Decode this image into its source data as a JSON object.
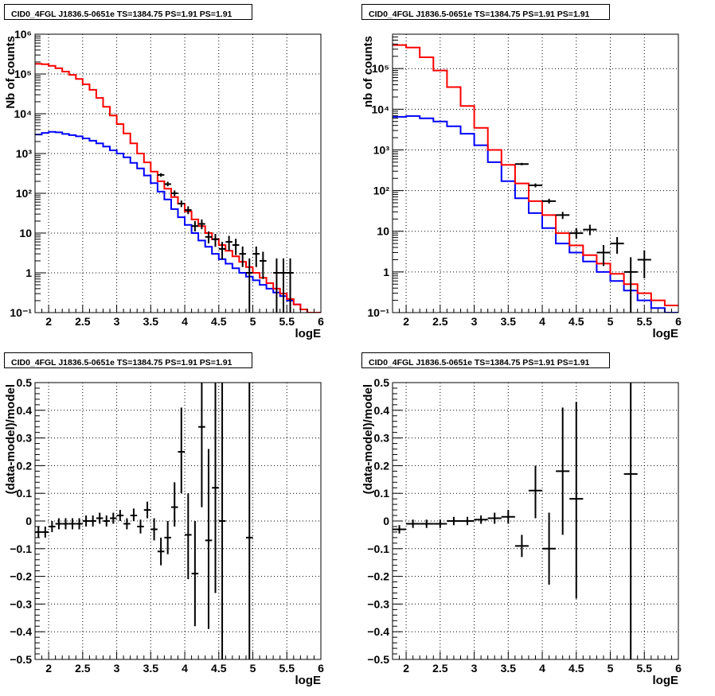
{
  "chart_data": [
    {
      "type": "line",
      "title": "CID0_4FGL J1836.5-0651e TS=1384.75 PS=1.91 PS=1.91",
      "xlabel": "logE",
      "ylabel": "Nb of counts",
      "y_scale": "log",
      "xlim": [
        1.8,
        6.0
      ],
      "ylim": [
        0.1,
        1000000
      ],
      "grid": true,
      "x_ticks": [
        "2",
        "2.5",
        "3",
        "3.5",
        "4",
        "4.5",
        "5",
        "5.5",
        "6"
      ],
      "y_ticks": [
        "10⁻¹",
        "1",
        "10",
        "10²",
        "10³",
        "10⁴",
        "10⁵",
        "10⁶"
      ],
      "x_edges": [
        1.8,
        1.9,
        2.0,
        2.1,
        2.2,
        2.3,
        2.4,
        2.5,
        2.6,
        2.7,
        2.8,
        2.9,
        3.0,
        3.1,
        3.2,
        3.3,
        3.4,
        3.5,
        3.6,
        3.7,
        3.8,
        3.9,
        4.0,
        4.1,
        4.2,
        4.3,
        4.4,
        4.5,
        4.6,
        4.7,
        4.8,
        4.9,
        5.0,
        5.1,
        5.2,
        5.3,
        5.4,
        5.5,
        5.6,
        5.7,
        5.8,
        5.9,
        6.0
      ],
      "series": [
        {
          "kind": "hist",
          "color": "#0000ff",
          "values": [
            3000,
            3300,
            3500,
            3400,
            3100,
            2900,
            2700,
            2400,
            2100,
            1800,
            1500,
            1200,
            1000,
            800,
            580,
            420,
            280,
            180,
            110,
            70,
            40,
            25,
            16,
            10,
            6.5,
            4.5,
            3.0,
            2.2,
            1.7,
            1.3,
            1.0,
            0.8,
            0.65,
            0.5,
            0.4,
            0.32,
            0.26,
            0.2,
            0.16,
            0.12,
            0.1,
            0.1
          ]
        },
        {
          "kind": "hist",
          "color": "#ff0000",
          "values": [
            180000,
            175000,
            160000,
            140000,
            115000,
            95000,
            75000,
            55000,
            40000,
            25000,
            15000,
            9000,
            5500,
            3200,
            1800,
            1000,
            600,
            350,
            200,
            130,
            80,
            55,
            35,
            22,
            15,
            10,
            7,
            5,
            3.6,
            2.6,
            1.9,
            1.4,
            1.0,
            0.75,
            0.55,
            0.4,
            0.3,
            0.22,
            0.16,
            0.12,
            0.1,
            0.1
          ]
        },
        {
          "kind": "points",
          "color": "#000000",
          "points": [
            {
              "x": 3.65,
              "y": 290,
              "ylo": 260,
              "yhi": 320
            },
            {
              "x": 3.75,
              "y": 170,
              "ylo": 150,
              "yhi": 195
            },
            {
              "x": 3.85,
              "y": 100,
              "ylo": 85,
              "yhi": 118
            },
            {
              "x": 3.95,
              "y": 55,
              "ylo": 45,
              "yhi": 66
            },
            {
              "x": 4.05,
              "y": 38,
              "ylo": 30,
              "yhi": 47
            },
            {
              "x": 4.15,
              "y": 15,
              "ylo": 11,
              "yhi": 20
            },
            {
              "x": 4.25,
              "y": 17,
              "ylo": 12.5,
              "yhi": 22
            },
            {
              "x": 4.35,
              "y": 8,
              "ylo": 5.5,
              "yhi": 11
            },
            {
              "x": 4.45,
              "y": 7,
              "ylo": 4.5,
              "yhi": 9.5
            },
            {
              "x": 4.55,
              "y": 4,
              "ylo": 2.2,
              "yhi": 6
            },
            {
              "x": 4.65,
              "y": 6,
              "ylo": 3.6,
              "yhi": 8.5
            },
            {
              "x": 4.75,
              "y": 5,
              "ylo": 2.8,
              "yhi": 7.2
            },
            {
              "x": 4.85,
              "y": 3,
              "ylo": 1.4,
              "yhi": 4.6
            },
            {
              "x": 4.95,
              "y": 1,
              "ylo": 0.1,
              "yhi": 2.3
            },
            {
              "x": 5.05,
              "y": 3,
              "ylo": 1.4,
              "yhi": 4.6
            },
            {
              "x": 5.15,
              "y": 2,
              "ylo": 0.7,
              "yhi": 3.4
            },
            {
              "x": 5.35,
              "y": 1,
              "ylo": 0.1,
              "yhi": 2.3
            },
            {
              "x": 5.45,
              "y": 1,
              "ylo": 0.1,
              "yhi": 2.3
            },
            {
              "x": 5.55,
              "y": 1,
              "ylo": 0.1,
              "yhi": 2.3
            }
          ]
        }
      ]
    },
    {
      "type": "line",
      "title": "CID0_4FGL J1836.5-0651e TS=1384.75 PS=1.91 PS=1.91",
      "xlabel": "logE",
      "ylabel": "nb of counts",
      "y_scale": "log",
      "xlim": [
        1.8,
        6.0
      ],
      "ylim": [
        0.1,
        700000
      ],
      "grid": true,
      "x_ticks": [
        "2",
        "2.5",
        "3",
        "3.5",
        "4",
        "4.5",
        "5",
        "5.5",
        "6"
      ],
      "y_ticks": [
        "10⁻¹",
        "1",
        "10",
        "10²",
        "10³",
        "10⁴",
        "10⁵"
      ],
      "x_edges": [
        1.8,
        2.0,
        2.2,
        2.4,
        2.6,
        2.8,
        3.0,
        3.2,
        3.4,
        3.6,
        3.8,
        4.0,
        4.2,
        4.4,
        4.6,
        4.8,
        5.0,
        5.2,
        5.4,
        5.6,
        5.8,
        6.0
      ],
      "series": [
        {
          "kind": "hist",
          "color": "#0000ff",
          "values": [
            6500,
            6800,
            6000,
            5000,
            3800,
            2500,
            1300,
            500,
            170,
            65,
            28,
            12,
            5,
            3,
            1.8,
            1.0,
            0.6,
            0.35,
            0.2,
            0.13,
            0.1
          ]
        },
        {
          "kind": "hist",
          "color": "#ff0000",
          "values": [
            380000,
            330000,
            190000,
            90000,
            35000,
            12000,
            3500,
            1000,
            430,
            150,
            55,
            25,
            9,
            4.5,
            2.6,
            1.6,
            0.9,
            0.5,
            0.3,
            0.2,
            0.15
          ]
        },
        {
          "kind": "points",
          "color": "#000000",
          "points": [
            {
              "x": 3.7,
              "y": 450,
              "ylo": 420,
              "yhi": 480
            },
            {
              "x": 3.9,
              "y": 135,
              "ylo": 120,
              "yhi": 150
            },
            {
              "x": 4.1,
              "y": 55,
              "ylo": 48,
              "yhi": 63
            },
            {
              "x": 4.3,
              "y": 25,
              "ylo": 20,
              "yhi": 30
            },
            {
              "x": 4.5,
              "y": 9,
              "ylo": 6.5,
              "yhi": 12
            },
            {
              "x": 4.7,
              "y": 11,
              "ylo": 8,
              "yhi": 14.5
            },
            {
              "x": 4.9,
              "y": 3,
              "ylo": 1.4,
              "yhi": 4.6
            },
            {
              "x": 5.1,
              "y": 5,
              "ylo": 2.8,
              "yhi": 7.2
            },
            {
              "x": 5.3,
              "y": 1,
              "ylo": 0.1,
              "yhi": 2.3
            },
            {
              "x": 5.5,
              "y": 2,
              "ylo": 0.7,
              "yhi": 3.4
            }
          ]
        }
      ]
    },
    {
      "type": "scatter",
      "title": "CID0_4FGL J1836.5-0651e TS=1384.75 PS=1.91 PS=1.91",
      "xlabel": "logE",
      "ylabel": "(data-model)/model",
      "y_scale": "linear",
      "xlim": [
        1.8,
        6.0
      ],
      "ylim": [
        -0.5,
        0.5
      ],
      "grid": true,
      "x_ticks": [
        "2",
        "2.5",
        "3",
        "3.5",
        "4",
        "4.5",
        "5",
        "5.5",
        "6"
      ],
      "y_ticks": [
        "−0.5",
        "−0.4",
        "−0.3",
        "−0.2",
        "−0.1",
        "0",
        "0.1",
        "0.2",
        "0.3",
        "0.4",
        "0.5"
      ],
      "bin_half_width": 0.05,
      "series": [
        {
          "kind": "points",
          "color": "#000000",
          "points": [
            {
              "x": 1.85,
              "y": -0.04,
              "ylo": -0.06,
              "yhi": -0.02
            },
            {
              "x": 1.95,
              "y": -0.04,
              "ylo": -0.06,
              "yhi": -0.02
            },
            {
              "x": 2.05,
              "y": -0.02,
              "ylo": -0.04,
              "yhi": 0.0
            },
            {
              "x": 2.15,
              "y": -0.01,
              "ylo": -0.03,
              "yhi": 0.01
            },
            {
              "x": 2.25,
              "y": -0.01,
              "ylo": -0.03,
              "yhi": 0.01
            },
            {
              "x": 2.35,
              "y": -0.01,
              "ylo": -0.03,
              "yhi": 0.01
            },
            {
              "x": 2.45,
              "y": -0.01,
              "ylo": -0.03,
              "yhi": 0.01
            },
            {
              "x": 2.55,
              "y": 0.0,
              "ylo": -0.02,
              "yhi": 0.02
            },
            {
              "x": 2.65,
              "y": 0.0,
              "ylo": -0.02,
              "yhi": 0.02
            },
            {
              "x": 2.75,
              "y": 0.01,
              "ylo": -0.01,
              "yhi": 0.03
            },
            {
              "x": 2.85,
              "y": 0.0,
              "ylo": -0.02,
              "yhi": 0.02
            },
            {
              "x": 2.95,
              "y": 0.01,
              "ylo": -0.01,
              "yhi": 0.03
            },
            {
              "x": 3.05,
              "y": 0.02,
              "ylo": 0.0,
              "yhi": 0.04
            },
            {
              "x": 3.15,
              "y": -0.01,
              "ylo": -0.03,
              "yhi": 0.01
            },
            {
              "x": 3.25,
              "y": 0.02,
              "ylo": 0.0,
              "yhi": 0.045
            },
            {
              "x": 3.35,
              "y": -0.02,
              "ylo": -0.045,
              "yhi": 0.005
            },
            {
              "x": 3.45,
              "y": 0.04,
              "ylo": 0.01,
              "yhi": 0.07
            },
            {
              "x": 3.55,
              "y": -0.03,
              "ylo": -0.07,
              "yhi": 0.01
            },
            {
              "x": 3.65,
              "y": -0.11,
              "ylo": -0.16,
              "yhi": -0.06
            },
            {
              "x": 3.75,
              "y": -0.06,
              "ylo": -0.12,
              "yhi": 0.0
            },
            {
              "x": 3.85,
              "y": 0.05,
              "ylo": -0.02,
              "yhi": 0.14
            },
            {
              "x": 3.95,
              "y": 0.25,
              "ylo": 0.1,
              "yhi": 0.41
            },
            {
              "x": 4.05,
              "y": -0.05,
              "ylo": -0.21,
              "yhi": 0.1
            },
            {
              "x": 4.15,
              "y": -0.19,
              "ylo": -0.38,
              "yhi": 0.0
            },
            {
              "x": 4.25,
              "y": 0.34,
              "ylo": 0.05,
              "yhi": 0.5
            },
            {
              "x": 4.35,
              "y": -0.07,
              "ylo": -0.39,
              "yhi": 0.26
            },
            {
              "x": 4.45,
              "y": 0.12,
              "ylo": -0.26,
              "yhi": 0.5
            },
            {
              "x": 4.55,
              "y": 0.0,
              "ylo": -0.5,
              "yhi": 0.5
            },
            {
              "x": 4.95,
              "y": -0.06,
              "ylo": -0.5,
              "yhi": 0.5
            }
          ]
        }
      ]
    },
    {
      "type": "scatter",
      "title": "CID0_4FGL J1836.5-0651e TS=1384.75 PS=1.91 PS=1.91",
      "xlabel": "logE",
      "ylabel": "(data-model)/model",
      "y_scale": "linear",
      "xlim": [
        1.8,
        6.0
      ],
      "ylim": [
        -0.5,
        0.5
      ],
      "grid": true,
      "x_ticks": [
        "2",
        "2.5",
        "3",
        "3.5",
        "4",
        "4.5",
        "5",
        "5.5",
        "6"
      ],
      "y_ticks": [
        "−0.5",
        "−0.4",
        "−0.3",
        "−0.2",
        "−0.1",
        "0",
        "0.1",
        "0.2",
        "0.3",
        "0.4",
        "0.5"
      ],
      "bin_half_width": 0.1,
      "series": [
        {
          "kind": "points",
          "color": "#000000",
          "points": [
            {
              "x": 1.9,
              "y": -0.03,
              "ylo": -0.045,
              "yhi": -0.015
            },
            {
              "x": 2.1,
              "y": -0.01,
              "ylo": -0.025,
              "yhi": 0.005
            },
            {
              "x": 2.3,
              "y": -0.01,
              "ylo": -0.025,
              "yhi": 0.005
            },
            {
              "x": 2.5,
              "y": -0.01,
              "ylo": -0.025,
              "yhi": 0.005
            },
            {
              "x": 2.7,
              "y": 0.0,
              "ylo": -0.015,
              "yhi": 0.015
            },
            {
              "x": 2.9,
              "y": 0.0,
              "ylo": -0.015,
              "yhi": 0.015
            },
            {
              "x": 3.1,
              "y": 0.005,
              "ylo": -0.01,
              "yhi": 0.02
            },
            {
              "x": 3.3,
              "y": 0.01,
              "ylo": -0.01,
              "yhi": 0.03
            },
            {
              "x": 3.5,
              "y": 0.015,
              "ylo": -0.01,
              "yhi": 0.04
            },
            {
              "x": 3.7,
              "y": -0.09,
              "ylo": -0.13,
              "yhi": -0.05
            },
            {
              "x": 3.9,
              "y": 0.11,
              "ylo": 0.01,
              "yhi": 0.2
            },
            {
              "x": 4.1,
              "y": -0.1,
              "ylo": -0.23,
              "yhi": 0.03
            },
            {
              "x": 4.3,
              "y": 0.18,
              "ylo": -0.05,
              "yhi": 0.41
            },
            {
              "x": 4.5,
              "y": 0.08,
              "ylo": -0.28,
              "yhi": 0.43
            },
            {
              "x": 5.3,
              "y": 0.17,
              "ylo": -0.5,
              "yhi": 0.5
            }
          ]
        }
      ]
    }
  ]
}
